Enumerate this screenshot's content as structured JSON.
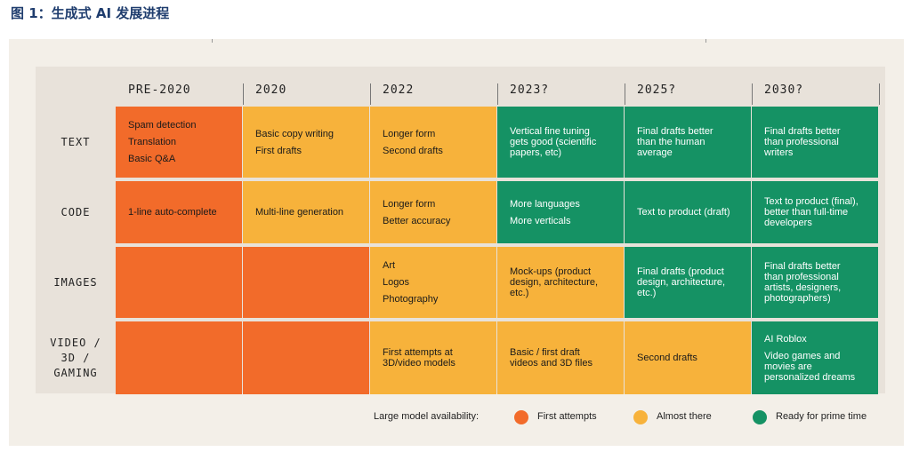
{
  "figure_title": "图 1：生成式 AI 发展进程",
  "colors": {
    "first": "#f26b2a",
    "almost": "#f7b23b",
    "ready": "#159264"
  },
  "columns": [
    "PRE-2020",
    "2020",
    "2022",
    "2023?",
    "2025?",
    "2030?"
  ],
  "rows": [
    {
      "label": [
        "TEXT"
      ],
      "cells": [
        {
          "status": "first",
          "lines": [
            "Spam detection",
            "Translation",
            "Basic Q&A"
          ],
          "spaced": true
        },
        {
          "status": "almost",
          "lines": [
            "Basic copy writing",
            "First drafts"
          ],
          "spaced": true
        },
        {
          "status": "almost",
          "lines": [
            "Longer form",
            "Second drafts"
          ],
          "spaced": true
        },
        {
          "status": "ready",
          "lines": [
            "Vertical fine tuning",
            "gets good (scientific",
            "papers, etc)"
          ]
        },
        {
          "status": "ready",
          "lines": [
            "Final drafts better",
            "than the human",
            "average"
          ]
        },
        {
          "status": "ready",
          "lines": [
            "Final drafts better",
            "than professional",
            "writers"
          ]
        }
      ]
    },
    {
      "label": [
        "CODE"
      ],
      "cells": [
        {
          "status": "first",
          "lines": [
            "1-line auto-complete"
          ]
        },
        {
          "status": "almost",
          "lines": [
            "Multi-line generation"
          ]
        },
        {
          "status": "almost",
          "lines": [
            "Longer form",
            "Better accuracy"
          ],
          "spaced": true
        },
        {
          "status": "ready",
          "lines": [
            "More languages",
            "More verticals"
          ],
          "spaced": true
        },
        {
          "status": "ready",
          "lines": [
            "Text to product (draft)"
          ]
        },
        {
          "status": "ready",
          "lines": [
            "Text to product (final),",
            "better than full-time",
            "developers"
          ]
        }
      ]
    },
    {
      "label": [
        "IMAGES"
      ],
      "cells": [
        {
          "status": "first",
          "lines": []
        },
        {
          "status": "first",
          "lines": []
        },
        {
          "status": "almost",
          "lines": [
            "Art",
            "Logos",
            "Photography"
          ],
          "spaced": true
        },
        {
          "status": "almost",
          "lines": [
            "Mock-ups (product",
            "design, architecture,",
            "etc.)"
          ]
        },
        {
          "status": "ready",
          "lines": [
            "Final drafts (product",
            "design, architecture,",
            "etc.)"
          ]
        },
        {
          "status": "ready",
          "lines": [
            "Final drafts better",
            "than professional",
            "artists, designers,",
            "photographers)"
          ]
        }
      ]
    },
    {
      "label": [
        "VIDEO /",
        "3D /",
        "GAMING"
      ],
      "cells": [
        {
          "status": "first",
          "lines": []
        },
        {
          "status": "first",
          "lines": []
        },
        {
          "status": "almost",
          "lines": [
            "First attempts at",
            "3D/video models"
          ]
        },
        {
          "status": "almost",
          "lines": [
            "Basic / first draft",
            "videos and 3D files"
          ]
        },
        {
          "status": "almost",
          "lines": [
            "Second drafts"
          ]
        },
        {
          "status": "ready",
          "lines": [
            "AI Roblox",
            "Video games and",
            "movies are",
            "personalized dreams"
          ],
          "first_gap": true
        }
      ]
    }
  ],
  "legend": {
    "title": "Large model availability:",
    "items": [
      {
        "status": "first",
        "label": "First attempts"
      },
      {
        "status": "almost",
        "label": "Almost there"
      },
      {
        "status": "ready",
        "label": "Ready for prime time"
      }
    ]
  }
}
